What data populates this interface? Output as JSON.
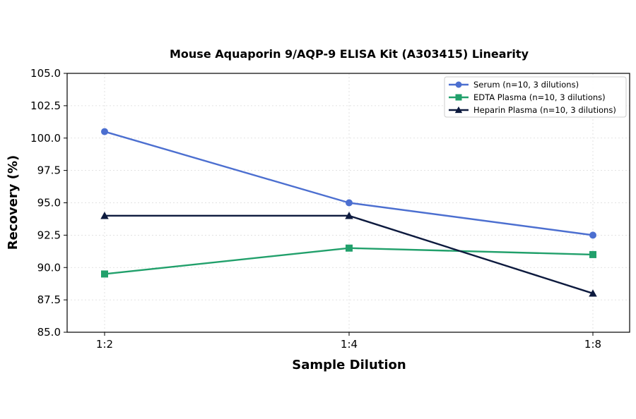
{
  "chart_data": {
    "type": "line",
    "title": "Mouse Aquaporin 9/AQP-9 ELISA Kit (A303415) Linearity",
    "xlabel": "Sample Dilution",
    "ylabel": "Recovery (%)",
    "categories": [
      "1:2",
      "1:4",
      "1:8"
    ],
    "ylim": [
      85.0,
      105.0
    ],
    "yticks": [
      "85.0",
      "87.5",
      "90.0",
      "92.5",
      "95.0",
      "97.5",
      "100.0",
      "102.5",
      "105.0"
    ],
    "grid": true,
    "legend_position": "top-right",
    "series": [
      {
        "name": "Serum (n=10, 3 dilutions)",
        "values": [
          100.5,
          95.0,
          92.5
        ],
        "color": "#4c6fd0",
        "marker": "circle"
      },
      {
        "name": "EDTA Plasma (n=10, 3 dilutions)",
        "values": [
          89.5,
          91.5,
          91.0
        ],
        "color": "#21a06b",
        "marker": "square"
      },
      {
        "name": "Heparin Plasma (n=10, 3 dilutions)",
        "values": [
          94.0,
          94.0,
          88.0
        ],
        "color": "#0d1a3e",
        "marker": "triangle"
      }
    ]
  }
}
